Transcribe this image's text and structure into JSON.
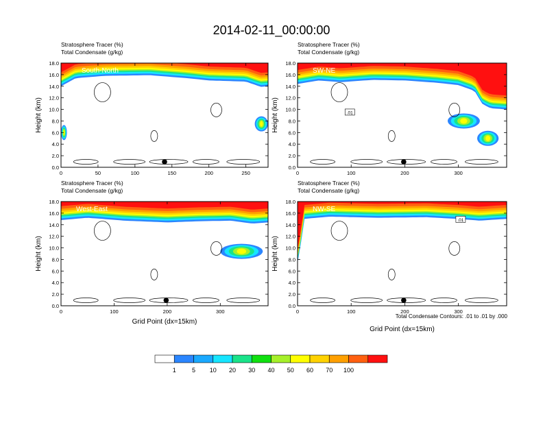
{
  "title": "2014-02-11_00:00:00",
  "panel_label_line1": "Stratosphere Tracer   (%)",
  "panel_label_line2": "Total Condensate   (g/kg)",
  "contour_note": "Total Condensate Contours: .01 to .01 by .000",
  "colors": {
    "levels": [
      "#ffffff",
      "#2b86ff",
      "#1aa9ff",
      "#16e5ff",
      "#1ae38a",
      "#10e010",
      "#a6f02a",
      "#ffff00",
      "#ffd200",
      "#ffa000",
      "#ff6010",
      "#ff1010"
    ]
  },
  "colorbar": {
    "labels": [
      "1",
      "5",
      "10",
      "20",
      "30",
      "40",
      "50",
      "60",
      "70",
      "100"
    ]
  },
  "chart_data": [
    {
      "type": "heatmap",
      "subtitle": "South-North",
      "ylabel": "Height (km)",
      "xlabel": "",
      "xlim": [
        0,
        280
      ],
      "ylim": [
        0,
        18
      ],
      "xticks": [
        0,
        50,
        100,
        150,
        200,
        250
      ],
      "yticks": [
        "0.0",
        "2.0",
        "4.0",
        "6.0",
        "8.0",
        "10.0",
        "12.0",
        "14.0",
        "16.0",
        "18.0"
      ],
      "marker_x": 140,
      "tropopause": [
        [
          0,
          14.6
        ],
        [
          20,
          16.0
        ],
        [
          60,
          16.4
        ],
        [
          120,
          16.5
        ],
        [
          170,
          16.0
        ],
        [
          200,
          15.6
        ],
        [
          250,
          15.4
        ],
        [
          270,
          14.5
        ],
        [
          280,
          14.6
        ]
      ],
      "low_tongues": [
        [
          0,
          8,
          6.0
        ],
        [
          262,
          18,
          7.5
        ]
      ],
      "stratosphere_tracer_range": [
        0,
        100
      ]
    },
    {
      "type": "heatmap",
      "subtitle": "SW-NE",
      "ylabel": "Height (km)",
      "xlabel": "",
      "xlim": [
        0,
        390
      ],
      "ylim": [
        0,
        18
      ],
      "xticks": [
        0,
        100,
        200,
        300
      ],
      "yticks": [
        "0.0",
        "2.0",
        "4.0",
        "6.0",
        "8.0",
        "10.0",
        "12.0",
        "14.0",
        "16.0",
        "18.0"
      ],
      "marker_x": 198,
      "contour_label": ".01",
      "tropopause": [
        [
          0,
          15.0
        ],
        [
          40,
          15.6
        ],
        [
          80,
          15.3
        ],
        [
          140,
          15.7
        ],
        [
          200,
          15.6
        ],
        [
          260,
          15.2
        ],
        [
          300,
          14.8
        ],
        [
          330,
          13.8
        ],
        [
          345,
          11.5
        ],
        [
          360,
          10.8
        ],
        [
          390,
          10.6
        ]
      ],
      "low_tongues": [
        [
          280,
          60,
          8.0
        ],
        [
          335,
          40,
          5.0
        ]
      ],
      "stratosphere_tracer_range": [
        0,
        100
      ]
    },
    {
      "type": "heatmap",
      "subtitle": "West-East",
      "ylabel": "Height (km)",
      "xlabel": "Grid Point (dx=15km)",
      "xlim": [
        0,
        390
      ],
      "ylim": [
        0,
        18
      ],
      "xticks": [
        0,
        100,
        200,
        300
      ],
      "yticks": [
        "0.0",
        "2.0",
        "4.0",
        "6.0",
        "8.0",
        "10.0",
        "12.0",
        "14.0",
        "16.0",
        "18.0"
      ],
      "marker_x": 198,
      "tropopause": [
        [
          0,
          15.4
        ],
        [
          50,
          15.8
        ],
        [
          120,
          15.3
        ],
        [
          200,
          15.0
        ],
        [
          260,
          15.2
        ],
        [
          320,
          15.3
        ],
        [
          360,
          14.8
        ],
        [
          390,
          15.0
        ]
      ],
      "low_tongues": [
        [
          300,
          80,
          9.4
        ]
      ],
      "stratosphere_tracer_range": [
        0,
        100
      ]
    },
    {
      "type": "heatmap",
      "subtitle": "NW-SE",
      "ylabel": "Height (km)",
      "xlabel": "Grid Point (dx=15km)",
      "xlim": [
        0,
        390
      ],
      "ylim": [
        0,
        18
      ],
      "xticks": [
        0,
        100,
        200,
        300
      ],
      "yticks": [
        "0.0",
        "2.0",
        "4.0",
        "6.0",
        "8.0",
        "10.0",
        "12.0",
        "14.0",
        "16.0",
        "18.0"
      ],
      "marker_x": 198,
      "contour_label": ".01",
      "tropopause": [
        [
          0,
          8.0
        ],
        [
          5,
          10.5
        ],
        [
          12,
          15.6
        ],
        [
          60,
          16.0
        ],
        [
          150,
          15.8
        ],
        [
          240,
          15.9
        ],
        [
          300,
          15.6
        ],
        [
          340,
          15.3
        ],
        [
          370,
          15.5
        ],
        [
          390,
          15.6
        ]
      ],
      "low_tongues": [],
      "stratosphere_tracer_range": [
        0,
        100
      ]
    }
  ]
}
